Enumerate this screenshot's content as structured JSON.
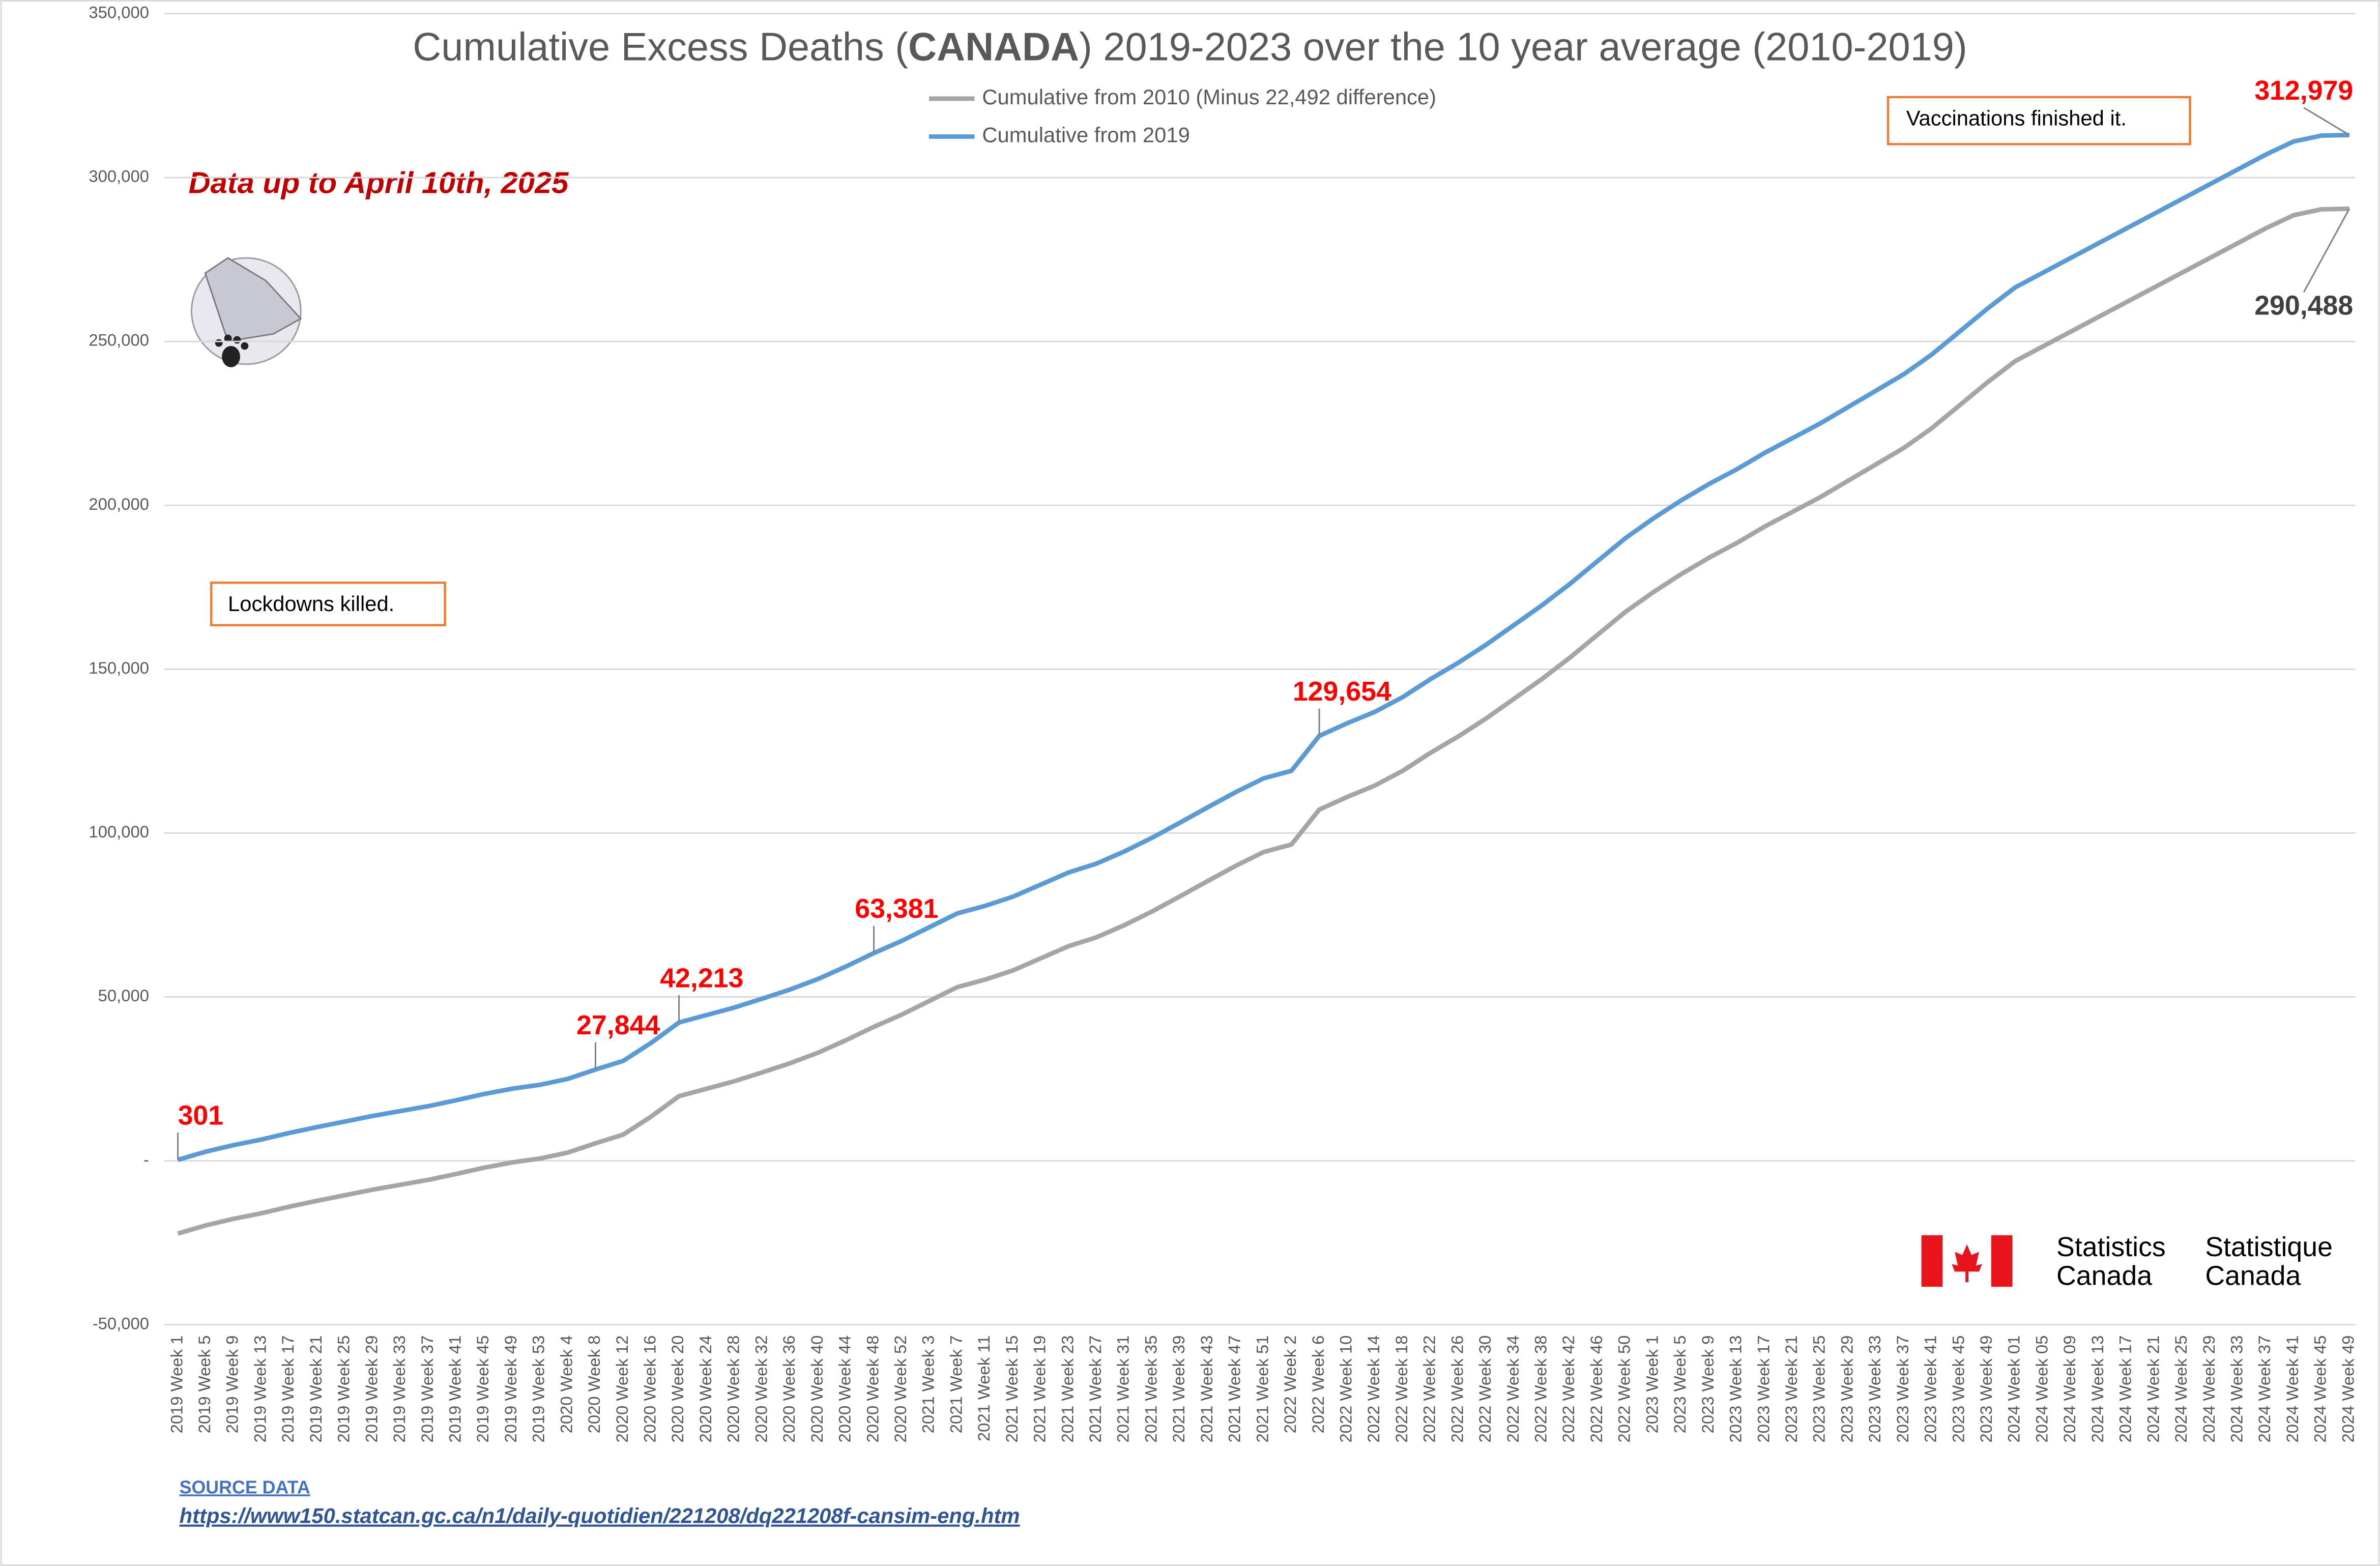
{
  "chart_data": {
    "type": "line",
    "title_parts": [
      "Cumulative Excess Deaths (",
      "CANADA",
      ") 2019-2023 over the 10 year average (2010-2019)"
    ],
    "subtitle": "Data up to April 10th, 2025",
    "annotations": [
      "Lockdowns killed.",
      "Vaccinations finished it."
    ],
    "logo_text": [
      "Statistics",
      "Canada",
      "Statistique",
      "Canada"
    ],
    "source_label": "SOURCE DATA",
    "source_url": "https://www150.statcan.gc.ca/n1/daily-quotidien/221208/dq221208f-cansim-eng.htm",
    "categories": [
      "2019 Week 1",
      "2019 Week 5",
      "2019 Week 9",
      "2019 Week 13",
      "2019 Week 17",
      "2019 Week 21",
      "2019 Week 25",
      "2019 Week 29",
      "2019 Week 33",
      "2019 Week 37",
      "2019 Week 41",
      "2019 Week 45",
      "2019 Week 49",
      "2019 Week 53",
      "2020 Week 4",
      "2020 Week 8",
      "2020 Week 12",
      "2020 Week 16",
      "2020 Week 20",
      "2020 Week 24",
      "2020 Week 28",
      "2020 Week 32",
      "2020 Week 36",
      "2020 Week 40",
      "2020 Week 44",
      "2020 Week 48",
      "2020 Week 52",
      "2021 Week 3",
      "2021 Week 7",
      "2021 Week 11",
      "2021 Week 15",
      "2021 Week 19",
      "2021 Week 23",
      "2021 Week 27",
      "2021 Week 31",
      "2021 Week 35",
      "2021 Week 39",
      "2021 Week 43",
      "2021 Week 47",
      "2021 Week 51",
      "2022 Week 2",
      "2022 Week 6",
      "2022 Week 10",
      "2022 Week 14",
      "2022 Week 18",
      "2022 Week 22",
      "2022 Week 26",
      "2022 Week 30",
      "2022 Week 34",
      "2022 Week 38",
      "2022 Week 42",
      "2022 Week 46",
      "2022 Week 50",
      "2023 Week 1",
      "2023 Week 5",
      "2023 Week 9",
      "2023 Week 13",
      "2023 Week 17",
      "2023 Week 21",
      "2023 Week 25",
      "2023 Week 29",
      "2023 Week 33",
      "2023 Week 37",
      "2023 Week 41",
      "2023 Week 45",
      "2023 Week 49",
      "2024 Week 01",
      "2024 Week 05",
      "2024 Week 09",
      "2024 Week 13",
      "2024 Week 17",
      "2024 Week 21",
      "2024 Week 25",
      "2024 Week 29",
      "2024 Week 33",
      "2024 Week 37",
      "2024 Week 41",
      "2024 Week 45",
      "2024 Week 49"
    ],
    "series": [
      {
        "name": "Cumulative from 2010 (Minus 22,492 difference)",
        "color": "#a5a5a5",
        "label_color": "#404040",
        "values": [
          -22191,
          -19692,
          -17692,
          -15992,
          -13992,
          -12192,
          -10492,
          -8792,
          -7292,
          -5792,
          -3992,
          -2092,
          -492,
          708,
          2508,
          5352,
          8008,
          13508,
          19721,
          22008,
          24308,
          27008,
          29808,
          33008,
          36808,
          40889,
          44608,
          48808,
          53008,
          55308,
          58108,
          61808,
          65508,
          68208,
          71908,
          76108,
          80708,
          85408,
          90008,
          94208,
          96508,
          107162,
          111008,
          114508,
          119008,
          124508,
          129508,
          135008,
          141008,
          147008,
          153508,
          160508,
          167508,
          173508,
          179008,
          184008,
          188508,
          193508,
          198008,
          202508,
          207508,
          212508,
          217508,
          223508,
          230508,
          237508,
          244008,
          248508,
          253008,
          257508,
          262008,
          266508,
          271008,
          275508,
          280008,
          284508,
          288508,
          290308,
          290488
        ],
        "value_labels": [
          null,
          null,
          null,
          null,
          null,
          null,
          null,
          null,
          null,
          null,
          null,
          null,
          null,
          null,
          null,
          null,
          null,
          null,
          null,
          null,
          null,
          null,
          null,
          null,
          null,
          null,
          null,
          null,
          null,
          null,
          null,
          null,
          null,
          null,
          null,
          null,
          null,
          null,
          null,
          null,
          null,
          null,
          null,
          null,
          null,
          null,
          null,
          null,
          null,
          null,
          null,
          null,
          null,
          null,
          null,
          null,
          null,
          null,
          null,
          null,
          null,
          null,
          null,
          null,
          null,
          null,
          null,
          null,
          null,
          null,
          null,
          null,
          null,
          null,
          null,
          null,
          null,
          null,
          "290,488"
        ]
      },
      {
        "name": "Cumulative from 2019",
        "color": "#5b9bd5",
        "label_color": "#ff0000",
        "values": [
          301,
          2800,
          4800,
          6500,
          8500,
          10300,
          12000,
          13700,
          15200,
          16700,
          18500,
          20400,
          22000,
          23200,
          25000,
          27844,
          30500,
          36000,
          42213,
          44500,
          46800,
          49500,
          52300,
          55500,
          59300,
          63381,
          67100,
          71300,
          75500,
          77800,
          80600,
          84300,
          88000,
          90700,
          94400,
          98600,
          103200,
          107900,
          112500,
          116700,
          119000,
          129654,
          133500,
          137000,
          141500,
          147000,
          152000,
          157500,
          163500,
          169500,
          176000,
          183000,
          190000,
          196000,
          201500,
          206500,
          211000,
          216000,
          220500,
          225000,
          230000,
          235000,
          240000,
          246000,
          253000,
          260000,
          266500,
          271000,
          275500,
          280000,
          284500,
          289000,
          293500,
          298000,
          302500,
          307000,
          311000,
          312800,
          312979
        ],
        "value_labels": [
          "301",
          null,
          null,
          null,
          null,
          null,
          null,
          null,
          null,
          null,
          null,
          null,
          null,
          null,
          null,
          "27,844",
          null,
          null,
          "42,213",
          null,
          null,
          null,
          null,
          null,
          null,
          "63,381",
          null,
          null,
          null,
          null,
          null,
          null,
          null,
          null,
          null,
          null,
          null,
          null,
          null,
          null,
          null,
          "129,654",
          null,
          null,
          null,
          null,
          null,
          null,
          null,
          null,
          null,
          null,
          null,
          null,
          null,
          null,
          null,
          null,
          null,
          null,
          null,
          null,
          null,
          null,
          null,
          null,
          null,
          null,
          null,
          null,
          null,
          null,
          null,
          null,
          null,
          null,
          null,
          null,
          "312,979"
        ]
      }
    ],
    "ylim": [
      -50000,
      350000
    ],
    "yticks": [
      {
        "value": -50000,
        "label": "-50,000"
      },
      {
        "value": 0,
        "label": "-"
      },
      {
        "value": 50000,
        "label": "50,000"
      },
      {
        "value": 100000,
        "label": "100,000"
      },
      {
        "value": 150000,
        "label": "150,000"
      },
      {
        "value": 200000,
        "label": "200,000"
      },
      {
        "value": 250000,
        "label": "250,000"
      },
      {
        "value": 300000,
        "label": "300,000"
      },
      {
        "value": 350000,
        "label": "350,000"
      }
    ],
    "grid": true
  }
}
